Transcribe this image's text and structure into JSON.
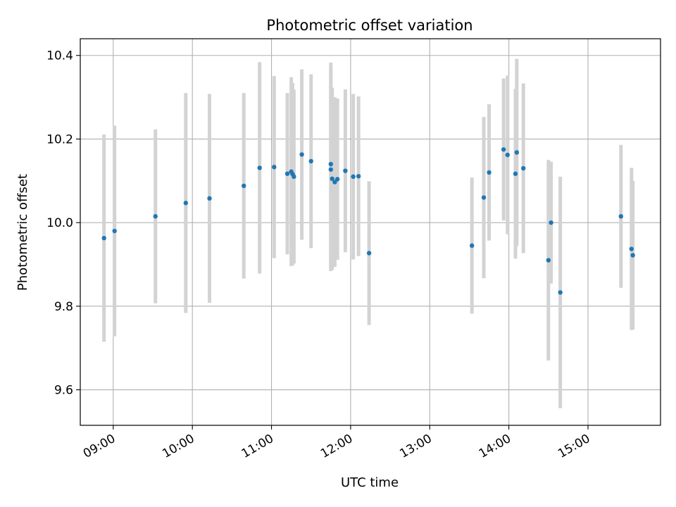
{
  "chart_data": {
    "type": "scatter",
    "title": "Photometric offset variation",
    "xlabel": "UTC time",
    "ylabel": "Photometric offset",
    "x_unit": "time of day (HH:MM)",
    "xlim": [
      "08:35",
      "15:55"
    ],
    "ylim": [
      9.515,
      10.44
    ],
    "x_ticks": [
      "09:00",
      "10:00",
      "11:00",
      "12:00",
      "13:00",
      "14:00",
      "15:00"
    ],
    "y_ticks": [
      9.6,
      9.8,
      10.0,
      10.2,
      10.4
    ],
    "y_tick_labels": [
      "9.6",
      "9.8",
      "10.0",
      "10.2",
      "10.4"
    ],
    "grid": true,
    "point_color": "#1f77b4",
    "errorbar_color": "#d3d3d3",
    "points": [
      {
        "time": "08:53",
        "y": 9.963,
        "err": 0.248
      },
      {
        "time": "09:01",
        "y": 9.98,
        "err": 0.252
      },
      {
        "time": "09:32",
        "y": 10.015,
        "err": 0.208
      },
      {
        "time": "09:55",
        "y": 10.047,
        "err": 0.263
      },
      {
        "time": "10:13",
        "y": 10.058,
        "err": 0.25
      },
      {
        "time": "10:39",
        "y": 10.088,
        "err": 0.222
      },
      {
        "time": "10:51",
        "y": 10.131,
        "err": 0.253
      },
      {
        "time": "11:02",
        "y": 10.133,
        "err": 0.218
      },
      {
        "time": "11:12",
        "y": 10.117,
        "err": 0.193
      },
      {
        "time": "11:15",
        "y": 10.122,
        "err": 0.226
      },
      {
        "time": "11:16",
        "y": 10.116,
        "err": 0.218
      },
      {
        "time": "11:17",
        "y": 10.11,
        "err": 0.208
      },
      {
        "time": "11:23",
        "y": 10.163,
        "err": 0.204
      },
      {
        "time": "11:30",
        "y": 10.147,
        "err": 0.208
      },
      {
        "time": "11:45",
        "y": 10.14,
        "err": 0.243
      },
      {
        "time": "11:45",
        "y": 10.127,
        "err": 0.243
      },
      {
        "time": "11:46",
        "y": 10.105,
        "err": 0.218
      },
      {
        "time": "11:48",
        "y": 10.097,
        "err": 0.203
      },
      {
        "time": "11:50",
        "y": 10.104,
        "err": 0.193
      },
      {
        "time": "11:56",
        "y": 10.124,
        "err": 0.195
      },
      {
        "time": "12:02",
        "y": 10.11,
        "err": 0.198
      },
      {
        "time": "12:06",
        "y": 10.111,
        "err": 0.191
      },
      {
        "time": "12:14",
        "y": 9.927,
        "err": 0.172
      },
      {
        "time": "13:32",
        "y": 9.945,
        "err": 0.163
      },
      {
        "time": "13:41",
        "y": 10.06,
        "err": 0.193
      },
      {
        "time": "13:45",
        "y": 10.12,
        "err": 0.163
      },
      {
        "time": "13:56",
        "y": 10.175,
        "err": 0.17
      },
      {
        "time": "13:59",
        "y": 10.162,
        "err": 0.19
      },
      {
        "time": "14:05",
        "y": 10.117,
        "err": 0.203
      },
      {
        "time": "14:06",
        "y": 10.168,
        "err": 0.224
      },
      {
        "time": "14:11",
        "y": 10.13,
        "err": 0.203
      },
      {
        "time": "14:30",
        "y": 9.91,
        "err": 0.24
      },
      {
        "time": "14:32",
        "y": 10.0,
        "err": 0.146
      },
      {
        "time": "14:39",
        "y": 9.833,
        "err": 0.277
      },
      {
        "time": "15:25",
        "y": 10.015,
        "err": 0.171
      },
      {
        "time": "15:33",
        "y": 9.937,
        "err": 0.194
      },
      {
        "time": "15:34",
        "y": 9.922,
        "err": 0.178
      }
    ]
  }
}
